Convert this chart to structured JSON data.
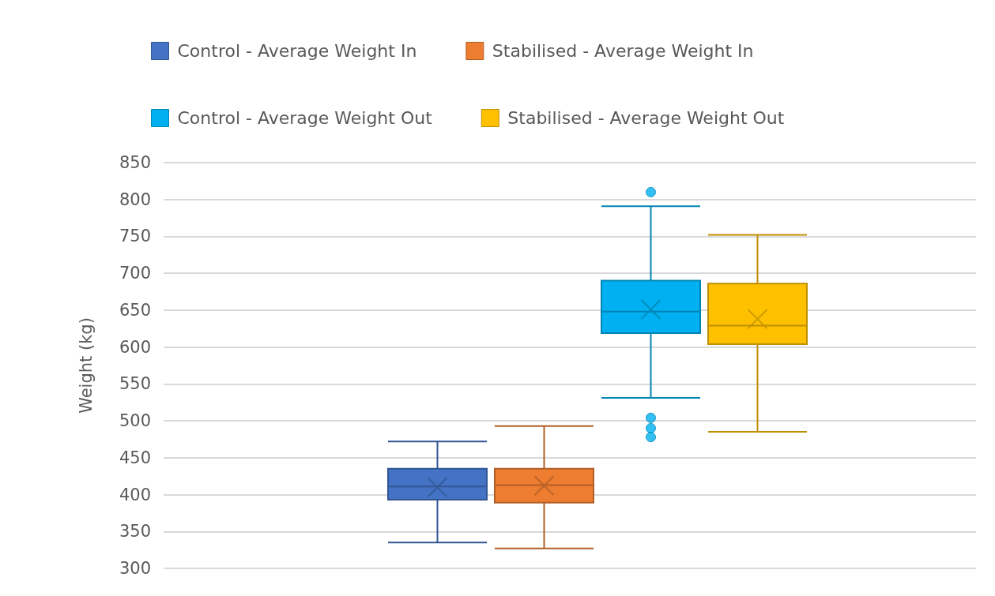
{
  "chart_data": {
    "type": "box",
    "categories": [
      null
    ],
    "ylabel": "Weight (kg)",
    "ylim": [
      300,
      850
    ],
    "yticks": [
      300,
      350,
      400,
      450,
      500,
      550,
      600,
      650,
      700,
      750,
      800,
      850
    ],
    "grid": "y",
    "legend": "top",
    "series": [
      {
        "name": "Control - Average Weight In",
        "color": "#4472c4",
        "boxes": [
          {
            "low": 335,
            "q1": 393,
            "median": 411,
            "q3": 435,
            "high": 472,
            "mean": 410
          }
        ]
      },
      {
        "name": "Stabilised - Average Weight In",
        "color": "#ed7d31",
        "boxes": [
          {
            "low": 327,
            "q1": 389,
            "median": 413,
            "q3": 435,
            "high": 493,
            "mean": 412
          }
        ]
      },
      {
        "name": "Control - Average Weight Out",
        "color": "#00b0f0",
        "boxes": [
          {
            "low": 531,
            "q1": 619,
            "median": 648,
            "q3": 690,
            "high": 791,
            "mean": 651,
            "outliers": [
              810,
              504,
              490,
              478
            ]
          }
        ]
      },
      {
        "name": "Stabilised - Average Weight Out",
        "color": "#ffc000",
        "boxes": [
          {
            "low": 485,
            "q1": 604,
            "median": 629,
            "q3": 686,
            "high": 752,
            "mean": 638
          }
        ]
      }
    ]
  }
}
